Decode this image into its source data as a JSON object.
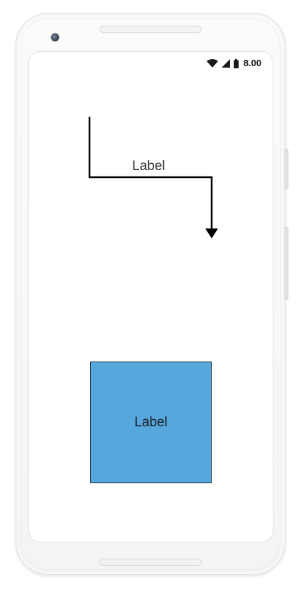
{
  "status_bar": {
    "time": "8.00",
    "icons": [
      "wifi-icon",
      "cellular-signal-icon",
      "battery-icon"
    ]
  },
  "diagram": {
    "connector": {
      "label": "Label",
      "stroke_color": "#000000",
      "arrowhead": "filled-triangle"
    },
    "node": {
      "label": "Label",
      "fill_color": "#55a7dc",
      "stroke_color": "#1b2a3a",
      "shape": "rectangle"
    }
  },
  "device": {
    "frame_color": "#f6f6f6"
  }
}
